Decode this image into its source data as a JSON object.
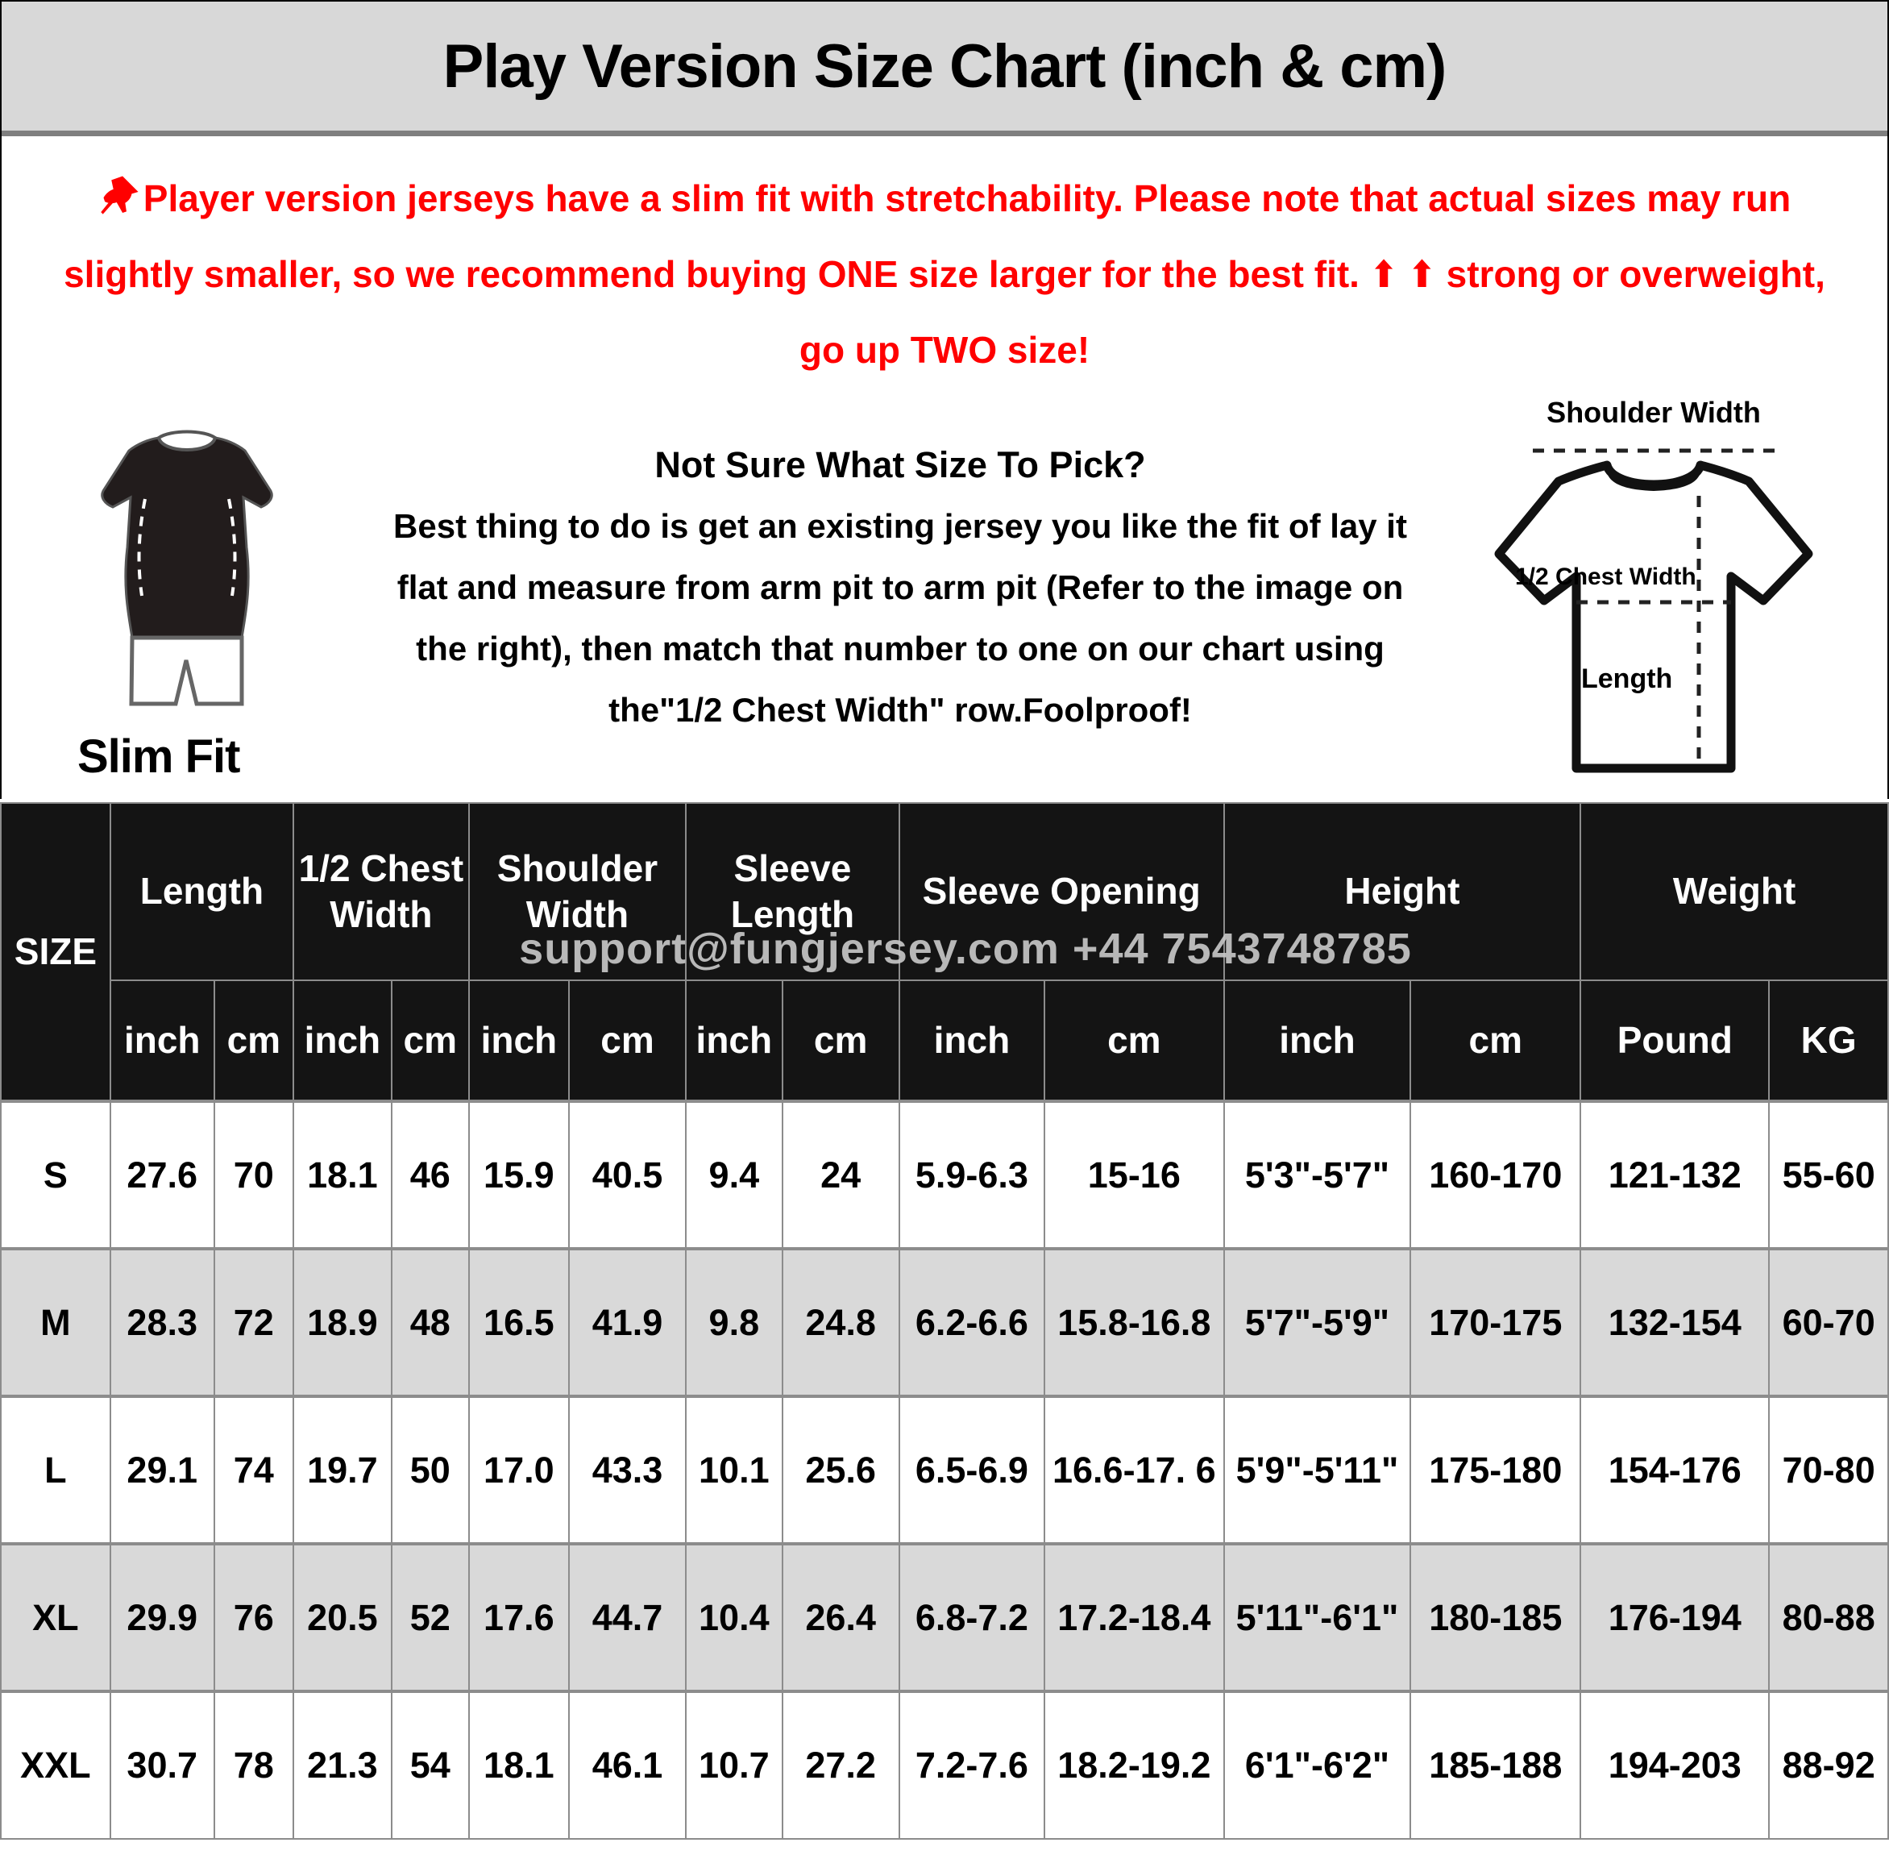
{
  "title": "Play Version Size Chart (inch & cm)",
  "notice": {
    "line1": "Player version jerseys have a slim fit with stretchability. Please note that actual sizes may run",
    "line2": "slightly smaller, so we recommend buying ONE size larger for the best fit. ⬆ ⬆ strong or overweight,",
    "line3": "go up TWO size!"
  },
  "slim_fit_label": "Slim Fit",
  "size_guide": {
    "heading": "Not Sure What Size To Pick?",
    "lines": [
      "Best thing to do is get an existing jersey you like the fit of lay it",
      "flat and measure from arm pit to arm pit (Refer to the image on",
      "the right), then match that number to one on our chart using",
      "the\"1/2 Chest Width\" row.Foolproof!"
    ]
  },
  "diagram": {
    "shoulder_width": "Shoulder Width",
    "half_chest_width": "1/2 Chest Width",
    "length": "Length"
  },
  "watermark": "support@fungjersey.com +44 7543748785",
  "colors": {
    "accent_red": "#ff0000",
    "header_bg": "#141414",
    "row_alt": "#d9d9d9",
    "title_bar_bg": "#d8d8d8",
    "grid": "#8c8c8c",
    "watermark": "#c6c6c6"
  },
  "chart_data": {
    "type": "table",
    "title": "Play Version Size Chart (inch & cm)",
    "size_header": "SIZE",
    "groups": [
      {
        "label": "Length",
        "cols": 2
      },
      {
        "label": "1/2 Chest Width",
        "cols": 2
      },
      {
        "label": "Shoulder Width",
        "cols": 2
      },
      {
        "label": "Sleeve Length",
        "cols": 2
      },
      {
        "label": "Sleeve Opening",
        "cols": 2
      },
      {
        "label": "Height",
        "cols": 2
      },
      {
        "label": "Weight",
        "cols": 2
      }
    ],
    "units": [
      "inch",
      "cm",
      "inch",
      "cm",
      "inch",
      "cm",
      "inch",
      "cm",
      "inch",
      "cm",
      "inch",
      "cm",
      "Pound",
      "KG"
    ],
    "rows": [
      {
        "size": "S",
        "values": [
          "27.6",
          "70",
          "18.1",
          "46",
          "15.9",
          "40.5",
          "9.4",
          "24",
          "5.9-6.3",
          "15-16",
          "5'3\"-5'7\"",
          "160-170",
          "121-132",
          "55-60"
        ]
      },
      {
        "size": "M",
        "values": [
          "28.3",
          "72",
          "18.9",
          "48",
          "16.5",
          "41.9",
          "9.8",
          "24.8",
          "6.2-6.6",
          "15.8-16.8",
          "5'7\"-5'9\"",
          "170-175",
          "132-154",
          "60-70"
        ]
      },
      {
        "size": "L",
        "values": [
          "29.1",
          "74",
          "19.7",
          "50",
          "17.0",
          "43.3",
          "10.1",
          "25.6",
          "6.5-6.9",
          "16.6-17. 6",
          "5'9\"-5'11\"",
          "175-180",
          "154-176",
          "70-80"
        ]
      },
      {
        "size": "XL",
        "values": [
          "29.9",
          "76",
          "20.5",
          "52",
          "17.6",
          "44.7",
          "10.4",
          "26.4",
          "6.8-7.2",
          "17.2-18.4",
          "5'11\"-6'1\"",
          "180-185",
          "176-194",
          "80-88"
        ]
      },
      {
        "size": "XXL",
        "values": [
          "30.7",
          "78",
          "21.3",
          "54",
          "18.1",
          "46.1",
          "10.7",
          "27.2",
          "7.2-7.6",
          "18.2-19.2",
          "6'1\"-6'2\"",
          "185-188",
          "194-203",
          "88-92"
        ]
      }
    ]
  }
}
